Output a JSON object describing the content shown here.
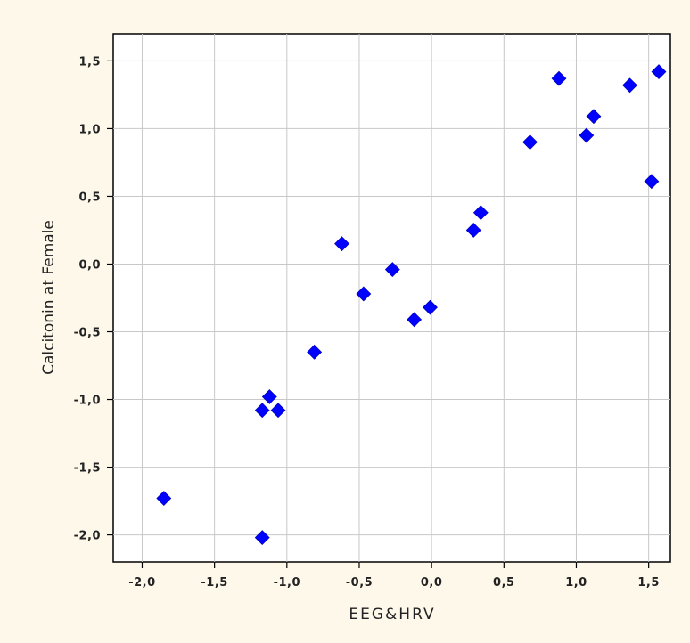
{
  "chart_data": {
    "type": "scatter",
    "title": "",
    "xlabel": "EEG&HRV",
    "ylabel": "Calcitonin at Female",
    "xlim": [
      -2.2,
      1.65
    ],
    "ylim": [
      -2.2,
      1.7
    ],
    "xticks": [
      -2.0,
      -1.5,
      -1.0,
      -0.5,
      0.0,
      0.5,
      1.0,
      1.5
    ],
    "xtick_labels": [
      "-2,0",
      "-1,5",
      "-1,0",
      "-0,5",
      "0,0",
      "0,5",
      "1,0",
      "1,5"
    ],
    "yticks": [
      1.5,
      1.0,
      0.5,
      0.0,
      -0.5,
      -1.0,
      -1.5,
      -2.0
    ],
    "ytick_labels": [
      "1,5",
      "1,0",
      "0,5",
      "0,0",
      "-0,5",
      "-1,0",
      "-1,5",
      "-2,0"
    ],
    "grid": true,
    "marker": "diamond",
    "marker_color": "#0000ff",
    "background_color": "#fdf8ea",
    "plot_background_color": "#ffffff",
    "series": [
      {
        "points": [
          {
            "x": -1.85,
            "y": -1.73
          },
          {
            "x": -1.17,
            "y": -2.02
          },
          {
            "x": -1.17,
            "y": -1.08
          },
          {
            "x": -1.12,
            "y": -0.98
          },
          {
            "x": -1.06,
            "y": -1.08
          },
          {
            "x": -0.81,
            "y": -0.65
          },
          {
            "x": -0.62,
            "y": 0.15
          },
          {
            "x": -0.47,
            "y": -0.22
          },
          {
            "x": -0.27,
            "y": -0.04
          },
          {
            "x": -0.12,
            "y": -0.41
          },
          {
            "x": -0.01,
            "y": -0.32
          },
          {
            "x": 0.29,
            "y": 0.25
          },
          {
            "x": 0.34,
            "y": 0.38
          },
          {
            "x": 0.68,
            "y": 0.9
          },
          {
            "x": 0.88,
            "y": 1.37
          },
          {
            "x": 1.07,
            "y": 0.95
          },
          {
            "x": 1.12,
            "y": 1.09
          },
          {
            "x": 1.37,
            "y": 1.32
          },
          {
            "x": 1.52,
            "y": 0.61
          },
          {
            "x": 1.57,
            "y": 1.42
          }
        ]
      }
    ]
  }
}
